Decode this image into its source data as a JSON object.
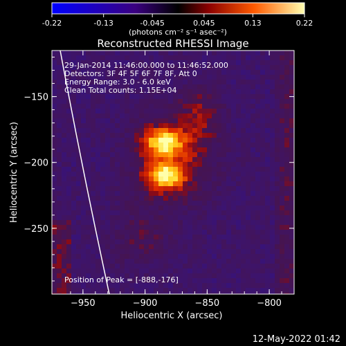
{
  "colorbar": {
    "ticks": [
      "-0.22",
      "-0.13",
      "-0.045",
      "0.045",
      "0.13",
      "0.22"
    ],
    "tick_values": [
      -0.22,
      -0.13,
      -0.045,
      0.045,
      0.13,
      0.22
    ],
    "unit_label": "(photons cm⁻² s⁻¹ asec⁻²)",
    "range": [
      -0.22,
      0.22
    ]
  },
  "chart_data": {
    "type": "heatmap",
    "title": "Reconstructed RHESSI Image",
    "xlabel": "Heliocentric X (arcsec)",
    "ylabel": "Heliocentric Y (arcsec)",
    "xlim": [
      -975,
      -780
    ],
    "ylim": [
      -300,
      -115
    ],
    "x_ticks": [
      -950,
      -900,
      -850,
      -800
    ],
    "x_tick_labels": [
      "−950",
      "−900",
      "−850",
      "−800"
    ],
    "y_ticks": [
      -150,
      -200,
      -250
    ],
    "y_tick_labels": [
      "−150",
      "−200",
      "−250"
    ],
    "annotations": [
      "29-Jan-2014 11:46:00.000 to 11:46:52.000",
      "Detectors: 3F 4F 5F 6F 7F 8F, Att 0",
      "Energy Range: 3.0 - 6.0 keV",
      "Clean     Total counts: 1.15E+04"
    ],
    "peak_label": "Position of Peak = [-888,-176]",
    "peak": [
      -888,
      -176
    ],
    "limb": true
  },
  "footer": {
    "timestamp": "12-May-2022 01:42"
  }
}
